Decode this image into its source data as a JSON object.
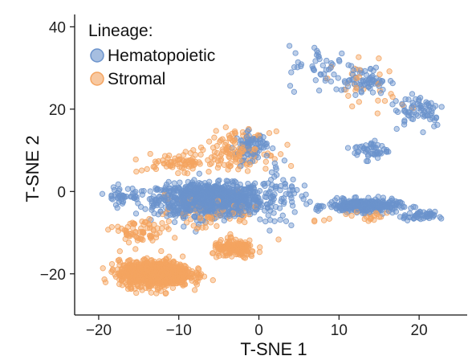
{
  "chart_data": {
    "type": "scatter",
    "xlabel": "T-SNE 1",
    "ylabel": "T-SNE 2",
    "xlim": [
      -23,
      26
    ],
    "ylim": [
      -30,
      43
    ],
    "xticks": [
      -20,
      -10,
      0,
      10,
      20
    ],
    "yticks": [
      -20,
      0,
      20,
      40
    ],
    "xtick_labels": [
      "−20",
      "−10",
      "0",
      "10",
      "20"
    ],
    "ytick_labels": [
      "−20",
      "0",
      "20",
      "40"
    ],
    "grid": false,
    "legend": {
      "title": "Lineage:",
      "placement": "top-left"
    },
    "series": [
      {
        "name": "Hematopoietic",
        "color": "#6b93cc",
        "clusters": [
          {
            "center": [
              -6,
              -2
            ],
            "spread": [
              6,
              3.5
            ],
            "count": 1100
          },
          {
            "center": [
              -1,
              11
            ],
            "spread": [
              1.8,
              3
            ],
            "count": 90
          },
          {
            "center": [
              13,
              -3.5
            ],
            "spread": [
              4,
              1.4
            ],
            "count": 330
          },
          {
            "center": [
              20,
              -6
            ],
            "spread": [
              1.8,
              1
            ],
            "count": 50
          },
          {
            "center": [
              13,
              27
            ],
            "spread": [
              3,
              3
            ],
            "count": 70
          },
          {
            "center": [
              14,
              10
            ],
            "spread": [
              2,
              2
            ],
            "count": 50
          },
          {
            "center": [
              20,
              20
            ],
            "spread": [
              3,
              4
            ],
            "count": 70
          },
          {
            "center": [
              8,
              30
            ],
            "spread": [
              4,
              5
            ],
            "count": 40
          },
          {
            "center": [
              3,
              0
            ],
            "spread": [
              3,
              8
            ],
            "count": 60
          },
          {
            "center": [
              -17,
              -1
            ],
            "spread": [
              2,
              2
            ],
            "count": 40
          }
        ]
      },
      {
        "name": "Stromal",
        "color": "#f4a460",
        "clusters": [
          {
            "center": [
              -13,
              -20
            ],
            "spread": [
              4,
              2.8
            ],
            "count": 900
          },
          {
            "center": [
              -3,
              -14
            ],
            "spread": [
              2.5,
              2
            ],
            "count": 160
          },
          {
            "center": [
              -3,
              10
            ],
            "spread": [
              4,
              4
            ],
            "count": 130
          },
          {
            "center": [
              -10,
              7
            ],
            "spread": [
              4,
              2
            ],
            "count": 70
          },
          {
            "center": [
              -15,
              -10
            ],
            "spread": [
              3,
              3
            ],
            "count": 70
          },
          {
            "center": [
              -6,
              -5
            ],
            "spread": [
              6,
              4
            ],
            "count": 80
          },
          {
            "center": [
              14,
              25
            ],
            "spread": [
              4,
              6
            ],
            "count": 30
          },
          {
            "center": [
              13,
              -6
            ],
            "spread": [
              4,
              2
            ],
            "count": 20
          }
        ]
      }
    ]
  }
}
